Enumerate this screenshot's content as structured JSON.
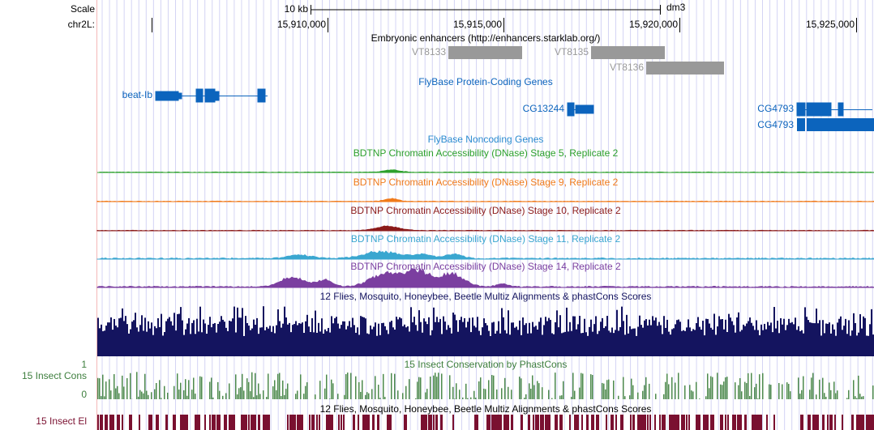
{
  "header": {
    "scale_label": "Scale",
    "scale_size": "10 kb",
    "assembly": "dm3",
    "chrom": "chr2L:",
    "positions": [
      "15,910,000",
      "15,915,000",
      "15,920,000",
      "15,925,000"
    ]
  },
  "enhancers": {
    "title": "Embryonic enhancers (http://enhancers.starklab.org/)",
    "items": [
      "VT8133",
      "VT8135",
      "VT8136"
    ]
  },
  "genes": {
    "title": "FlyBase Protein-Coding Genes",
    "items": [
      "beat-Ib",
      "CG13244",
      "CG4793",
      "CG4793"
    ]
  },
  "noncoding": {
    "title": "FlyBase Noncoding Genes"
  },
  "dnase_tracks": [
    "BDTNP Chromatin Accessibility (DNase) Stage 5, Replicate 2",
    "BDTNP Chromatin Accessibility (DNase) Stage 9, Replicate 2",
    "BDTNP Chromatin Accessibility (DNase) Stage 10, Replicate 2",
    "BDTNP Chromatin Accessibility (DNase) Stage 11, Replicate 2",
    "BDTNP Chromatin Accessibility (DNase) Stage 14, Replicate 2"
  ],
  "multiz": {
    "title": "12 Flies, Mosquito, Honeybee, Beetle Multiz Alignments & phastCons Scores"
  },
  "phastcons": {
    "title": "15 Insect Conservation by PhastCons",
    "side_label": "15 Insect Cons",
    "axis_max": 1,
    "axis_min": 0
  },
  "elements": {
    "title": "12 Flies, Mosquito, Honeybee, Beetle Multiz Alignments & phastCons Scores",
    "side_label": "15 Insect El"
  }
}
